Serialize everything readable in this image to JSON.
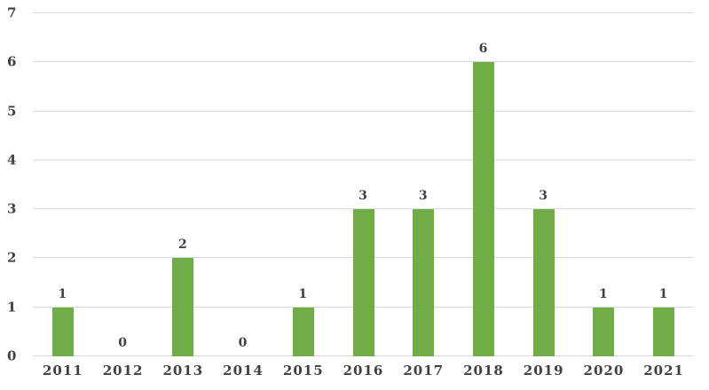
{
  "chart_data": {
    "type": "bar",
    "title": "",
    "categories": [
      "2011",
      "2012",
      "2013",
      "2014",
      "2015",
      "2016",
      "2017",
      "2018",
      "2019",
      "2020",
      "2021"
    ],
    "values": [
      1,
      0,
      2,
      0,
      1,
      3,
      3,
      6,
      3,
      1,
      1
    ],
    "xlabel": "",
    "ylabel": "",
    "ylim": [
      0,
      7
    ],
    "yticks": [
      0,
      1,
      2,
      3,
      4,
      5,
      6,
      7
    ],
    "grid": "horizontal",
    "legend_position": "none",
    "data_labels": true,
    "colors": {
      "bar": "#6fad47",
      "gridline": "#d9d9d9",
      "tick_text": "#404040",
      "background": "#ffffff"
    }
  }
}
